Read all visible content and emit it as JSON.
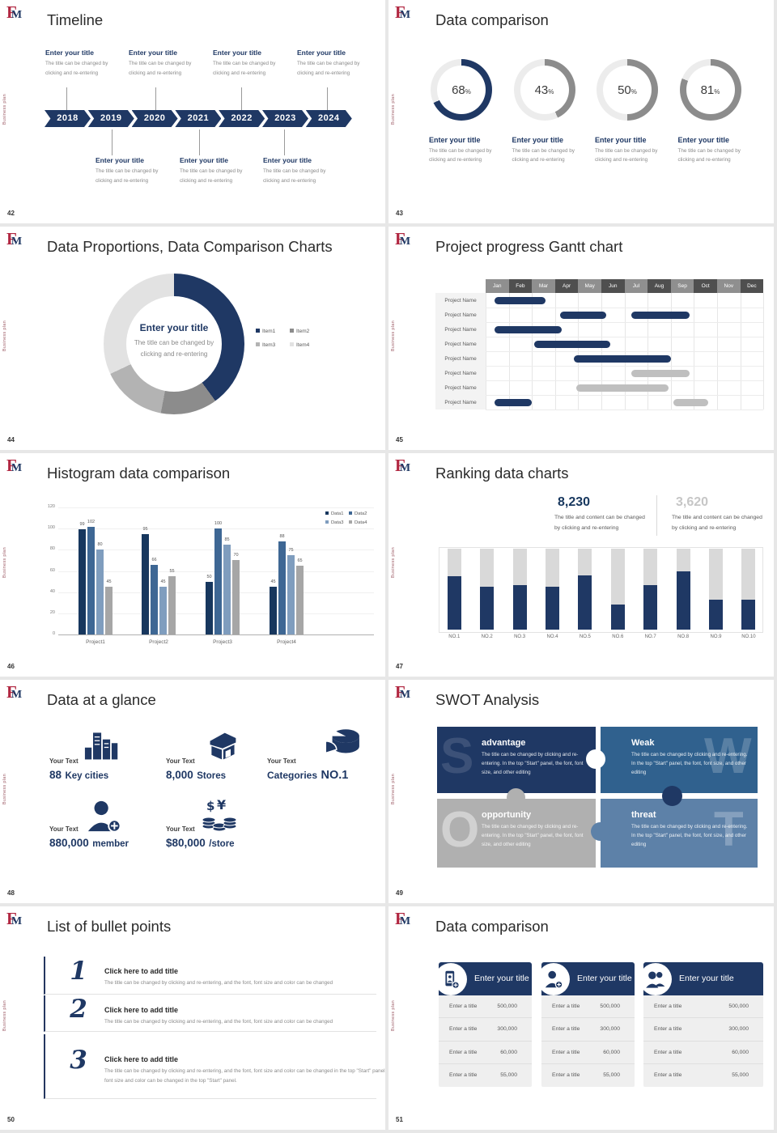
{
  "colors": {
    "navy": "#1f3864",
    "logo_red": "#b12741",
    "gray_body": "#8a8a8a",
    "ring_gray": "#8c8c8c",
    "bar_gray": "#d9d9d9",
    "steel": "#5d81a8",
    "mid_blue": "#30618e",
    "silver": "#b0b0b0"
  },
  "global": {
    "logo_f": "F",
    "logo_m": "M",
    "side_text": "Business plan"
  },
  "slides": {
    "s42": {
      "number": "42",
      "title": "Timeline",
      "years": [
        "2018",
        "2019",
        "2020",
        "2021",
        "2022",
        "2023",
        "2024"
      ],
      "entry_title": "Enter your title",
      "entry_body_line1": "The title can be changed by",
      "entry_body_line2": "clicking and re-entering"
    },
    "s43": {
      "number": "43",
      "title": "Data comparison",
      "percent": "%",
      "rings": [
        {
          "value": 68,
          "color": "#1f3864"
        },
        {
          "value": 43,
          "color": "#8c8c8c"
        },
        {
          "value": 50,
          "color": "#8c8c8c"
        },
        {
          "value": 81,
          "color": "#8c8c8c"
        }
      ],
      "entry_title": "Enter your title",
      "entry_body_line1": "The title can be changed by",
      "entry_body_line2": "clicking and re-entering"
    },
    "s44": {
      "number": "44",
      "title": "Data Proportions, Data Comparison Charts",
      "center_title": "Enter your title",
      "center_body_line1": "The title can be changed by",
      "center_body_line2": "clicking and re-entering",
      "segments": [
        {
          "label": "Item1",
          "pct": 40,
          "color": "#1f3864"
        },
        {
          "label": "Item2",
          "pct": 13,
          "color": "#8c8c8c"
        },
        {
          "label": "Item3",
          "pct": 15,
          "color": "#b3b3b3"
        },
        {
          "label": "Item4",
          "pct": 32,
          "color": "#e2e2e2"
        }
      ]
    },
    "s45": {
      "number": "45",
      "title": "Project progress Gantt chart",
      "row_label": "Project Name",
      "months": [
        "Jan",
        "Feb",
        "Mar",
        "Apr",
        "May",
        "Jun",
        "Jul",
        "Aug",
        "Sep",
        "Oct",
        "Nov",
        "Dec"
      ],
      "rows": [
        {
          "bars": [
            {
              "start": 0.4,
              "end": 2.6,
              "color": "navy"
            }
          ]
        },
        {
          "bars": [
            {
              "start": 3.2,
              "end": 5.2,
              "color": "navy"
            },
            {
              "start": 6.3,
              "end": 8.8,
              "color": "navy"
            }
          ]
        },
        {
          "bars": [
            {
              "start": 0.4,
              "end": 3.3,
              "color": "navy"
            }
          ]
        },
        {
          "bars": [
            {
              "start": 2.1,
              "end": 5.4,
              "color": "navy"
            }
          ]
        },
        {
          "bars": [
            {
              "start": 3.8,
              "end": 8.0,
              "color": "navy"
            }
          ]
        },
        {
          "bars": [
            {
              "start": 6.3,
              "end": 8.8,
              "color": "gray"
            }
          ]
        },
        {
          "bars": [
            {
              "start": 3.9,
              "end": 7.9,
              "color": "gray"
            }
          ]
        },
        {
          "bars": [
            {
              "start": 0.4,
              "end": 2.0,
              "color": "navy"
            },
            {
              "start": 8.1,
              "end": 9.6,
              "color": "gray"
            }
          ]
        }
      ]
    },
    "s46": {
      "number": "46",
      "title": "Histogram data comparison",
      "y_ticks": [
        0,
        20,
        40,
        60,
        80,
        100,
        120
      ],
      "categories": [
        "Project1",
        "Project2",
        "Project3",
        "Project4"
      ],
      "series": [
        {
          "name": "Data1",
          "color": "#17375e",
          "values": [
            99,
            95,
            50,
            45
          ]
        },
        {
          "name": "Data2",
          "color": "#3e6794",
          "values": [
            102,
            66,
            100,
            88
          ]
        },
        {
          "name": "Data3",
          "color": "#7f9dbe",
          "values": [
            80,
            45,
            85,
            75
          ]
        },
        {
          "name": "Data4",
          "color": "#a6a6a6",
          "values": [
            45,
            55,
            70,
            65
          ]
        }
      ]
    },
    "s47": {
      "number": "47",
      "title": "Ranking data charts",
      "stat1": {
        "value": "8,230",
        "color": "#17375e",
        "line1": "The title and content can be changed",
        "line2": "by clicking and re-entering"
      },
      "stat2": {
        "value": "3,620",
        "color": "#c6c6c6",
        "line1": "The title and content can be changed",
        "line2": "by clicking and re-entering"
      },
      "categories": [
        "NO.1",
        "NO.2",
        "NO.3",
        "NO.4",
        "NO.5",
        "NO.6",
        "NO.7",
        "NO.8",
        "NO.9",
        "NO.10"
      ],
      "fractions": [
        0.66,
        0.53,
        0.55,
        0.53,
        0.67,
        0.31,
        0.55,
        0.72,
        0.37,
        0.37
      ]
    },
    "s48": {
      "number": "48",
      "title": "Data at a glance",
      "items": [
        {
          "label": "Your Text",
          "value": "88",
          "unit": "Key cities",
          "icon": "building"
        },
        {
          "label": "Your Text",
          "value": "8,000",
          "unit": "Stores",
          "icon": "store"
        },
        {
          "label": "Your Text",
          "value": "Categories",
          "unit": "NO.1",
          "icon": "categories"
        },
        {
          "label": "Your Text",
          "value": "880,000",
          "unit": "member",
          "icon": "member"
        },
        {
          "label": "Your Text",
          "value": "$80,000",
          "unit": "/store",
          "icon": "money"
        }
      ]
    },
    "s49": {
      "number": "49",
      "title": "SWOT Analysis",
      "quads": [
        {
          "letter": "S",
          "title": "advantage",
          "body": "The title can be changed by clicking and re-entering. In the top \"Start\" panel, the font, font size, and other editing",
          "color": "#1f3864"
        },
        {
          "letter": "W",
          "title": "Weak",
          "body": "The title can be changed by clicking and re-entering. In the top \"Start\" panel, the font, font size, and other editing",
          "color": "#30618e"
        },
        {
          "letter": "O",
          "title": "opportunity",
          "body": "The title can be changed by clicking and re-entering. In the top \"Start\" panel, the font, font size, and other editing",
          "color": "#b0b0b0"
        },
        {
          "letter": "T",
          "title": "threat",
          "body": "The title can be changed by clicking and re-entering. In the top \"Start\" panel, the font, font size, and other editing",
          "color": "#5d81a8"
        }
      ]
    },
    "s50": {
      "number": "50",
      "title": "List of bullet points",
      "items": [
        {
          "num": "1",
          "title": "Click here to add title",
          "body": "The title can be changed by clicking and re-entering, and the font, font size and color can be changed"
        },
        {
          "num": "2",
          "title": "Click here to add title",
          "body": "The title can be changed by clicking and re-entering, and the font, font size and color can be changed"
        },
        {
          "num": "3",
          "title": "Click here to add title",
          "body": "The title can be changed by clicking and re-entering, and the font, font size and color can be changed in the top \"Start\" panel. The font, font size and color can be changed in the top \"Start\" panel."
        }
      ]
    },
    "s51": {
      "number": "51",
      "title": "Data comparison",
      "cards": [
        {
          "icon": "phone-add",
          "header": "Enter your title",
          "rows": [
            [
              "Enter a title",
              "500,000"
            ],
            [
              "Enter a title",
              "300,000"
            ],
            [
              "Enter a title",
              "60,000"
            ],
            [
              "Enter a title",
              "55,000"
            ]
          ]
        },
        {
          "icon": "person-add",
          "header": "Enter your title",
          "rows": [
            [
              "Enter a title",
              "500,000"
            ],
            [
              "Enter a title",
              "300,000"
            ],
            [
              "Enter a title",
              "60,000"
            ],
            [
              "Enter a title",
              "55,000"
            ]
          ]
        },
        {
          "icon": "people",
          "header": "Enter your title",
          "rows": [
            [
              "Enter a title",
              "500,000"
            ],
            [
              "Enter a title",
              "300,000"
            ],
            [
              "Enter a title",
              "60,000"
            ],
            [
              "Enter a title",
              "55,000"
            ]
          ]
        }
      ]
    }
  },
  "chart_data": [
    {
      "type": "pie",
      "slide": 43,
      "title": "Data comparison",
      "subtype": "donut-gauges",
      "values": [
        68,
        43,
        50,
        81
      ],
      "unit": "%",
      "labels": [
        "Enter your title",
        "Enter your title",
        "Enter your title",
        "Enter your title"
      ]
    },
    {
      "type": "pie",
      "slide": 44,
      "title": "Data Proportions, Data Comparison Charts",
      "categories": [
        "Item1",
        "Item2",
        "Item3",
        "Item4"
      ],
      "values": [
        40,
        13,
        15,
        32
      ],
      "legend_position": "right"
    },
    {
      "type": "table",
      "slide": 45,
      "title": "Project progress Gantt chart",
      "columns": [
        "Jan",
        "Feb",
        "Mar",
        "Apr",
        "May",
        "Jun",
        "Jul",
        "Aug",
        "Sep",
        "Oct",
        "Nov",
        "Dec"
      ],
      "rows": [
        {
          "label": "Project Name",
          "bars": [
            [
              0.4,
              2.6
            ]
          ]
        },
        {
          "label": "Project Name",
          "bars": [
            [
              3.2,
              5.2
            ],
            [
              6.3,
              8.8
            ]
          ]
        },
        {
          "label": "Project Name",
          "bars": [
            [
              0.4,
              3.3
            ]
          ]
        },
        {
          "label": "Project Name",
          "bars": [
            [
              2.1,
              5.4
            ]
          ]
        },
        {
          "label": "Project Name",
          "bars": [
            [
              3.8,
              8.0
            ]
          ]
        },
        {
          "label": "Project Name",
          "bars": [
            [
              6.3,
              8.8
            ]
          ]
        },
        {
          "label": "Project Name",
          "bars": [
            [
              3.9,
              7.9
            ]
          ]
        },
        {
          "label": "Project Name",
          "bars": [
            [
              0.4,
              2.0
            ],
            [
              8.1,
              9.6
            ]
          ]
        }
      ]
    },
    {
      "type": "bar",
      "slide": 46,
      "title": "Histogram data comparison",
      "categories": [
        "Project1",
        "Project2",
        "Project3",
        "Project4"
      ],
      "series": [
        {
          "name": "Data1",
          "values": [
            99,
            95,
            50,
            45
          ]
        },
        {
          "name": "Data2",
          "values": [
            102,
            66,
            100,
            88
          ]
        },
        {
          "name": "Data3",
          "values": [
            80,
            45,
            85,
            75
          ]
        },
        {
          "name": "Data4",
          "values": [
            45,
            55,
            70,
            65
          ]
        }
      ],
      "ylim": [
        0,
        120
      ],
      "grid": true,
      "legend_position": "top-right"
    },
    {
      "type": "bar",
      "slide": 47,
      "title": "Ranking data charts",
      "categories": [
        "NO.1",
        "NO.2",
        "NO.3",
        "NO.4",
        "NO.5",
        "NO.6",
        "NO.7",
        "NO.8",
        "NO.9",
        "NO.10"
      ],
      "values": [
        0.66,
        0.53,
        0.55,
        0.53,
        0.67,
        0.31,
        0.55,
        0.72,
        0.37,
        0.37
      ],
      "note": "navy filled fraction of full gray bar",
      "stats": [
        "8,230",
        "3,620"
      ]
    }
  ]
}
